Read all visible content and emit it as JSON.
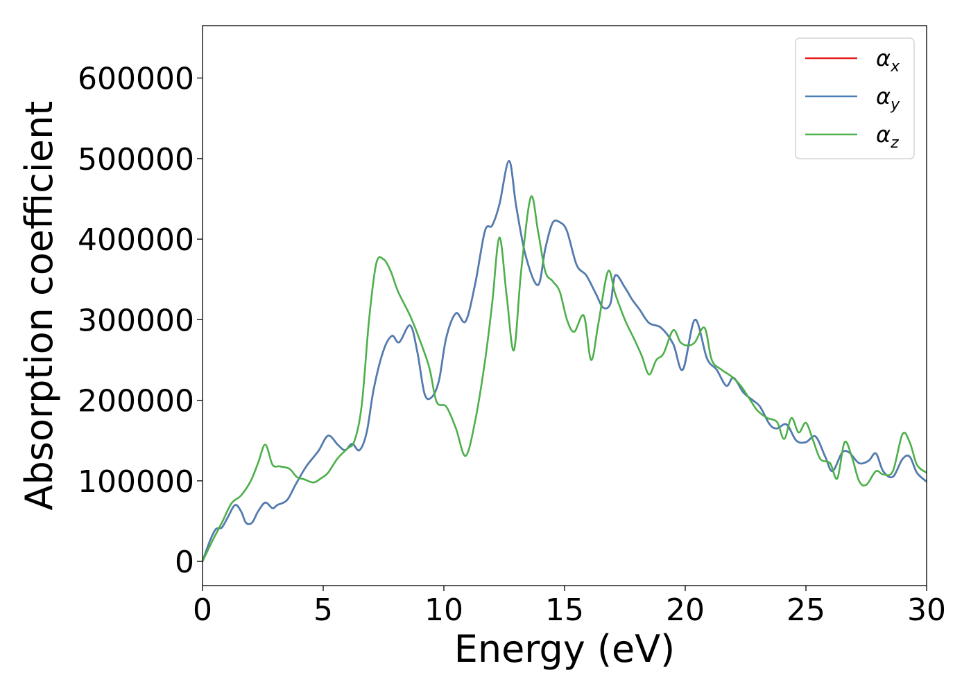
{
  "chart_data": {
    "type": "line",
    "title": "",
    "xlabel": "Energy (eV)",
    "ylabel": "Absorption coefficient",
    "xlim": [
      0,
      30
    ],
    "ylim": [
      -30000,
      665000
    ],
    "xticks": [
      0,
      5,
      10,
      15,
      20,
      25,
      30
    ],
    "xtick_labels": [
      "0",
      "5",
      "10",
      "15",
      "20",
      "25",
      "30"
    ],
    "yticks": [
      0,
      100000,
      200000,
      300000,
      400000,
      500000,
      600000
    ],
    "ytick_labels": [
      "0",
      "100000",
      "200000",
      "300000",
      "400000",
      "500000",
      "600000"
    ],
    "grid": false,
    "legend_position": "top-right",
    "series": [
      {
        "name": "αx",
        "symbol": "α",
        "subscript": "x",
        "color": "#e41a1c",
        "x": [
          0,
          0.3,
          0.55,
          0.8,
          1.05,
          1.35,
          1.6,
          1.8,
          2.05,
          2.3,
          2.6,
          2.9,
          3.1,
          3.5,
          3.85,
          4.3,
          4.8,
          5.2,
          5.6,
          5.9,
          6.2,
          6.5,
          6.8,
          7.1,
          7.5,
          7.85,
          8.15,
          8.6,
          8.9,
          9.2,
          9.5,
          9.8,
          10.1,
          10.5,
          10.9,
          11.3,
          11.7,
          12.0,
          12.3,
          12.7,
          13.0,
          13.4,
          13.9,
          14.2,
          14.5,
          14.8,
          15.1,
          15.5,
          15.9,
          16.3,
          16.6,
          16.9,
          17.1,
          17.5,
          17.8,
          18.1,
          18.5,
          19.0,
          19.5,
          19.9,
          20.4,
          20.9,
          21.3,
          21.7,
          22.0,
          22.4,
          22.8,
          23.1,
          23.5,
          23.8,
          24.2,
          24.6,
          25.0,
          25.4,
          25.8,
          26.1,
          26.5,
          26.8,
          27.2,
          27.6,
          27.9,
          28.2,
          28.6,
          29.0,
          29.3,
          29.6,
          30.0
        ],
        "y": [
          0,
          25000,
          40000,
          42000,
          55000,
          70000,
          62000,
          48000,
          48000,
          62000,
          73000,
          66000,
          70000,
          76000,
          95000,
          118000,
          137000,
          156000,
          145000,
          138000,
          146000,
          138000,
          160000,
          215000,
          262000,
          280000,
          272000,
          293000,
          260000,
          208000,
          204000,
          225000,
          278000,
          308000,
          298000,
          345000,
          410000,
          417000,
          443000,
          497000,
          440000,
          378000,
          343000,
          388000,
          420000,
          421000,
          410000,
          368000,
          355000,
          332000,
          315000,
          320000,
          355000,
          340000,
          325000,
          313000,
          296000,
          290000,
          270000,
          238000,
          300000,
          252000,
          238000,
          218000,
          228000,
          210000,
          200000,
          192000,
          170000,
          165000,
          170000,
          150000,
          148000,
          155000,
          130000,
          112000,
          135000,
          135000,
          122000,
          125000,
          134000,
          112000,
          105000,
          127000,
          130000,
          110000,
          99000
        ]
      },
      {
        "name": "αy",
        "symbol": "α",
        "subscript": "y",
        "color": "#4a7fb5",
        "x": [
          0,
          0.3,
          0.55,
          0.8,
          1.05,
          1.35,
          1.6,
          1.8,
          2.05,
          2.3,
          2.6,
          2.9,
          3.1,
          3.5,
          3.85,
          4.3,
          4.8,
          5.2,
          5.6,
          5.9,
          6.2,
          6.5,
          6.8,
          7.1,
          7.5,
          7.85,
          8.15,
          8.6,
          8.9,
          9.2,
          9.5,
          9.8,
          10.1,
          10.5,
          10.9,
          11.3,
          11.7,
          12.0,
          12.3,
          12.7,
          13.0,
          13.4,
          13.9,
          14.2,
          14.5,
          14.8,
          15.1,
          15.5,
          15.9,
          16.3,
          16.6,
          16.9,
          17.1,
          17.5,
          17.8,
          18.1,
          18.5,
          19.0,
          19.5,
          19.9,
          20.4,
          20.9,
          21.3,
          21.7,
          22.0,
          22.4,
          22.8,
          23.1,
          23.5,
          23.8,
          24.2,
          24.6,
          25.0,
          25.4,
          25.8,
          26.1,
          26.5,
          26.8,
          27.2,
          27.6,
          27.9,
          28.2,
          28.6,
          29.0,
          29.3,
          29.6,
          30.0
        ],
        "y": [
          0,
          25000,
          40000,
          42000,
          55000,
          70000,
          62000,
          48000,
          48000,
          62000,
          73000,
          66000,
          70000,
          76000,
          95000,
          118000,
          137000,
          156000,
          145000,
          138000,
          146000,
          138000,
          160000,
          215000,
          262000,
          280000,
          272000,
          293000,
          260000,
          208000,
          204000,
          225000,
          278000,
          308000,
          298000,
          345000,
          410000,
          417000,
          443000,
          497000,
          440000,
          378000,
          343000,
          388000,
          420000,
          421000,
          410000,
          368000,
          355000,
          332000,
          315000,
          320000,
          355000,
          340000,
          325000,
          313000,
          296000,
          290000,
          270000,
          238000,
          300000,
          252000,
          238000,
          218000,
          228000,
          210000,
          200000,
          192000,
          170000,
          165000,
          170000,
          150000,
          148000,
          155000,
          130000,
          112000,
          135000,
          135000,
          122000,
          125000,
          134000,
          112000,
          105000,
          127000,
          130000,
          110000,
          99000
        ]
      },
      {
        "name": "αz",
        "symbol": "α",
        "subscript": "z",
        "color": "#4daf4a",
        "x": [
          0,
          0.4,
          0.8,
          1.2,
          1.6,
          2.0,
          2.3,
          2.6,
          2.9,
          3.2,
          3.6,
          3.9,
          4.2,
          4.6,
          4.9,
          5.2,
          5.6,
          6.0,
          6.3,
          6.6,
          6.9,
          7.2,
          7.5,
          7.8,
          8.1,
          8.6,
          9.0,
          9.4,
          9.7,
          10.1,
          10.5,
          10.9,
          11.3,
          11.7,
          12.0,
          12.3,
          12.6,
          12.9,
          13.2,
          13.6,
          13.9,
          14.2,
          14.5,
          14.8,
          15.1,
          15.4,
          15.8,
          16.1,
          16.4,
          16.8,
          17.1,
          17.5,
          17.9,
          18.2,
          18.5,
          18.8,
          19.1,
          19.5,
          19.8,
          20.1,
          20.4,
          20.8,
          21.1,
          21.5,
          21.9,
          22.3,
          22.7,
          23.0,
          23.4,
          23.8,
          24.1,
          24.4,
          24.7,
          25.0,
          25.3,
          25.6,
          26.0,
          26.3,
          26.6,
          26.9,
          27.2,
          27.5,
          27.9,
          28.2,
          28.6,
          29.0,
          29.3,
          29.6,
          30.0
        ],
        "y": [
          0,
          25000,
          48000,
          72000,
          82000,
          100000,
          122000,
          145000,
          120000,
          118000,
          115000,
          105000,
          102000,
          98000,
          103000,
          110000,
          128000,
          140000,
          150000,
          195000,
          300000,
          370000,
          375000,
          360000,
          335000,
          305000,
          275000,
          240000,
          198000,
          192000,
          165000,
          131000,
          175000,
          248000,
          320000,
          402000,
          330000,
          262000,
          360000,
          452000,
          410000,
          360000,
          348000,
          335000,
          300000,
          285000,
          305000,
          250000,
          295000,
          360000,
          332000,
          300000,
          275000,
          255000,
          232000,
          250000,
          258000,
          287000,
          272000,
          268000,
          272000,
          290000,
          250000,
          238000,
          230000,
          218000,
          200000,
          187000,
          178000,
          173000,
          152000,
          178000,
          160000,
          172000,
          150000,
          127000,
          122000,
          103000,
          148000,
          130000,
          100000,
          95000,
          112000,
          108000,
          112000,
          158000,
          148000,
          120000,
          110000
        ]
      }
    ]
  }
}
